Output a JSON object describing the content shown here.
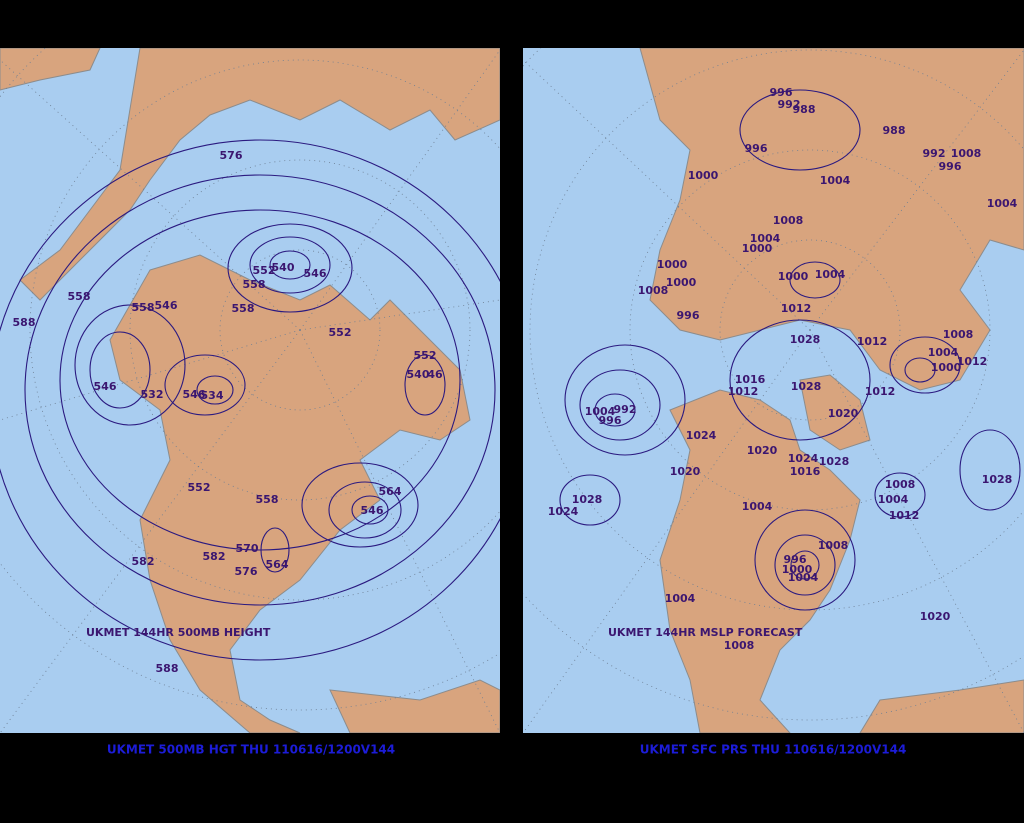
{
  "left_panel": {
    "caption": "UKMET 500MB HGT THU 110616/1200V144",
    "map_title": "UKMET 144HR 500MB HEIGHT",
    "contour_labels": [
      "576",
      "558",
      "588",
      "558",
      "546",
      "558",
      "552",
      "540",
      "546",
      "558",
      "552",
      "552",
      "540",
      "46",
      "546",
      "532",
      "546",
      "534",
      "552",
      "558",
      "564",
      "546",
      "570",
      "582",
      "582",
      "576",
      "564",
      "588"
    ]
  },
  "right_panel": {
    "caption": "UKMET SFC PRS THU 110616/1200V144",
    "map_title": "UKMET 144HR MSLP FORECAST",
    "contour_labels": [
      "996",
      "992",
      "988",
      "988",
      "992",
      "1008",
      "996",
      "996",
      "1000",
      "1004",
      "1004",
      "1008",
      "1004",
      "1000",
      "1000",
      "1000",
      "1008",
      "996",
      "1000",
      "1004",
      "1012",
      "1028",
      "1012",
      "1008",
      "1004",
      "1012",
      "1000",
      "1016",
      "1012",
      "1028",
      "1012",
      "1020",
      "1004",
      "992",
      "996",
      "1024",
      "1020",
      "1024",
      "1016",
      "1028",
      "1020",
      "1008",
      "1004",
      "1012",
      "1028",
      "1028",
      "1024",
      "1004",
      "1008",
      "996",
      "1000",
      "1004",
      "1004",
      "1020",
      "1008"
    ]
  }
}
